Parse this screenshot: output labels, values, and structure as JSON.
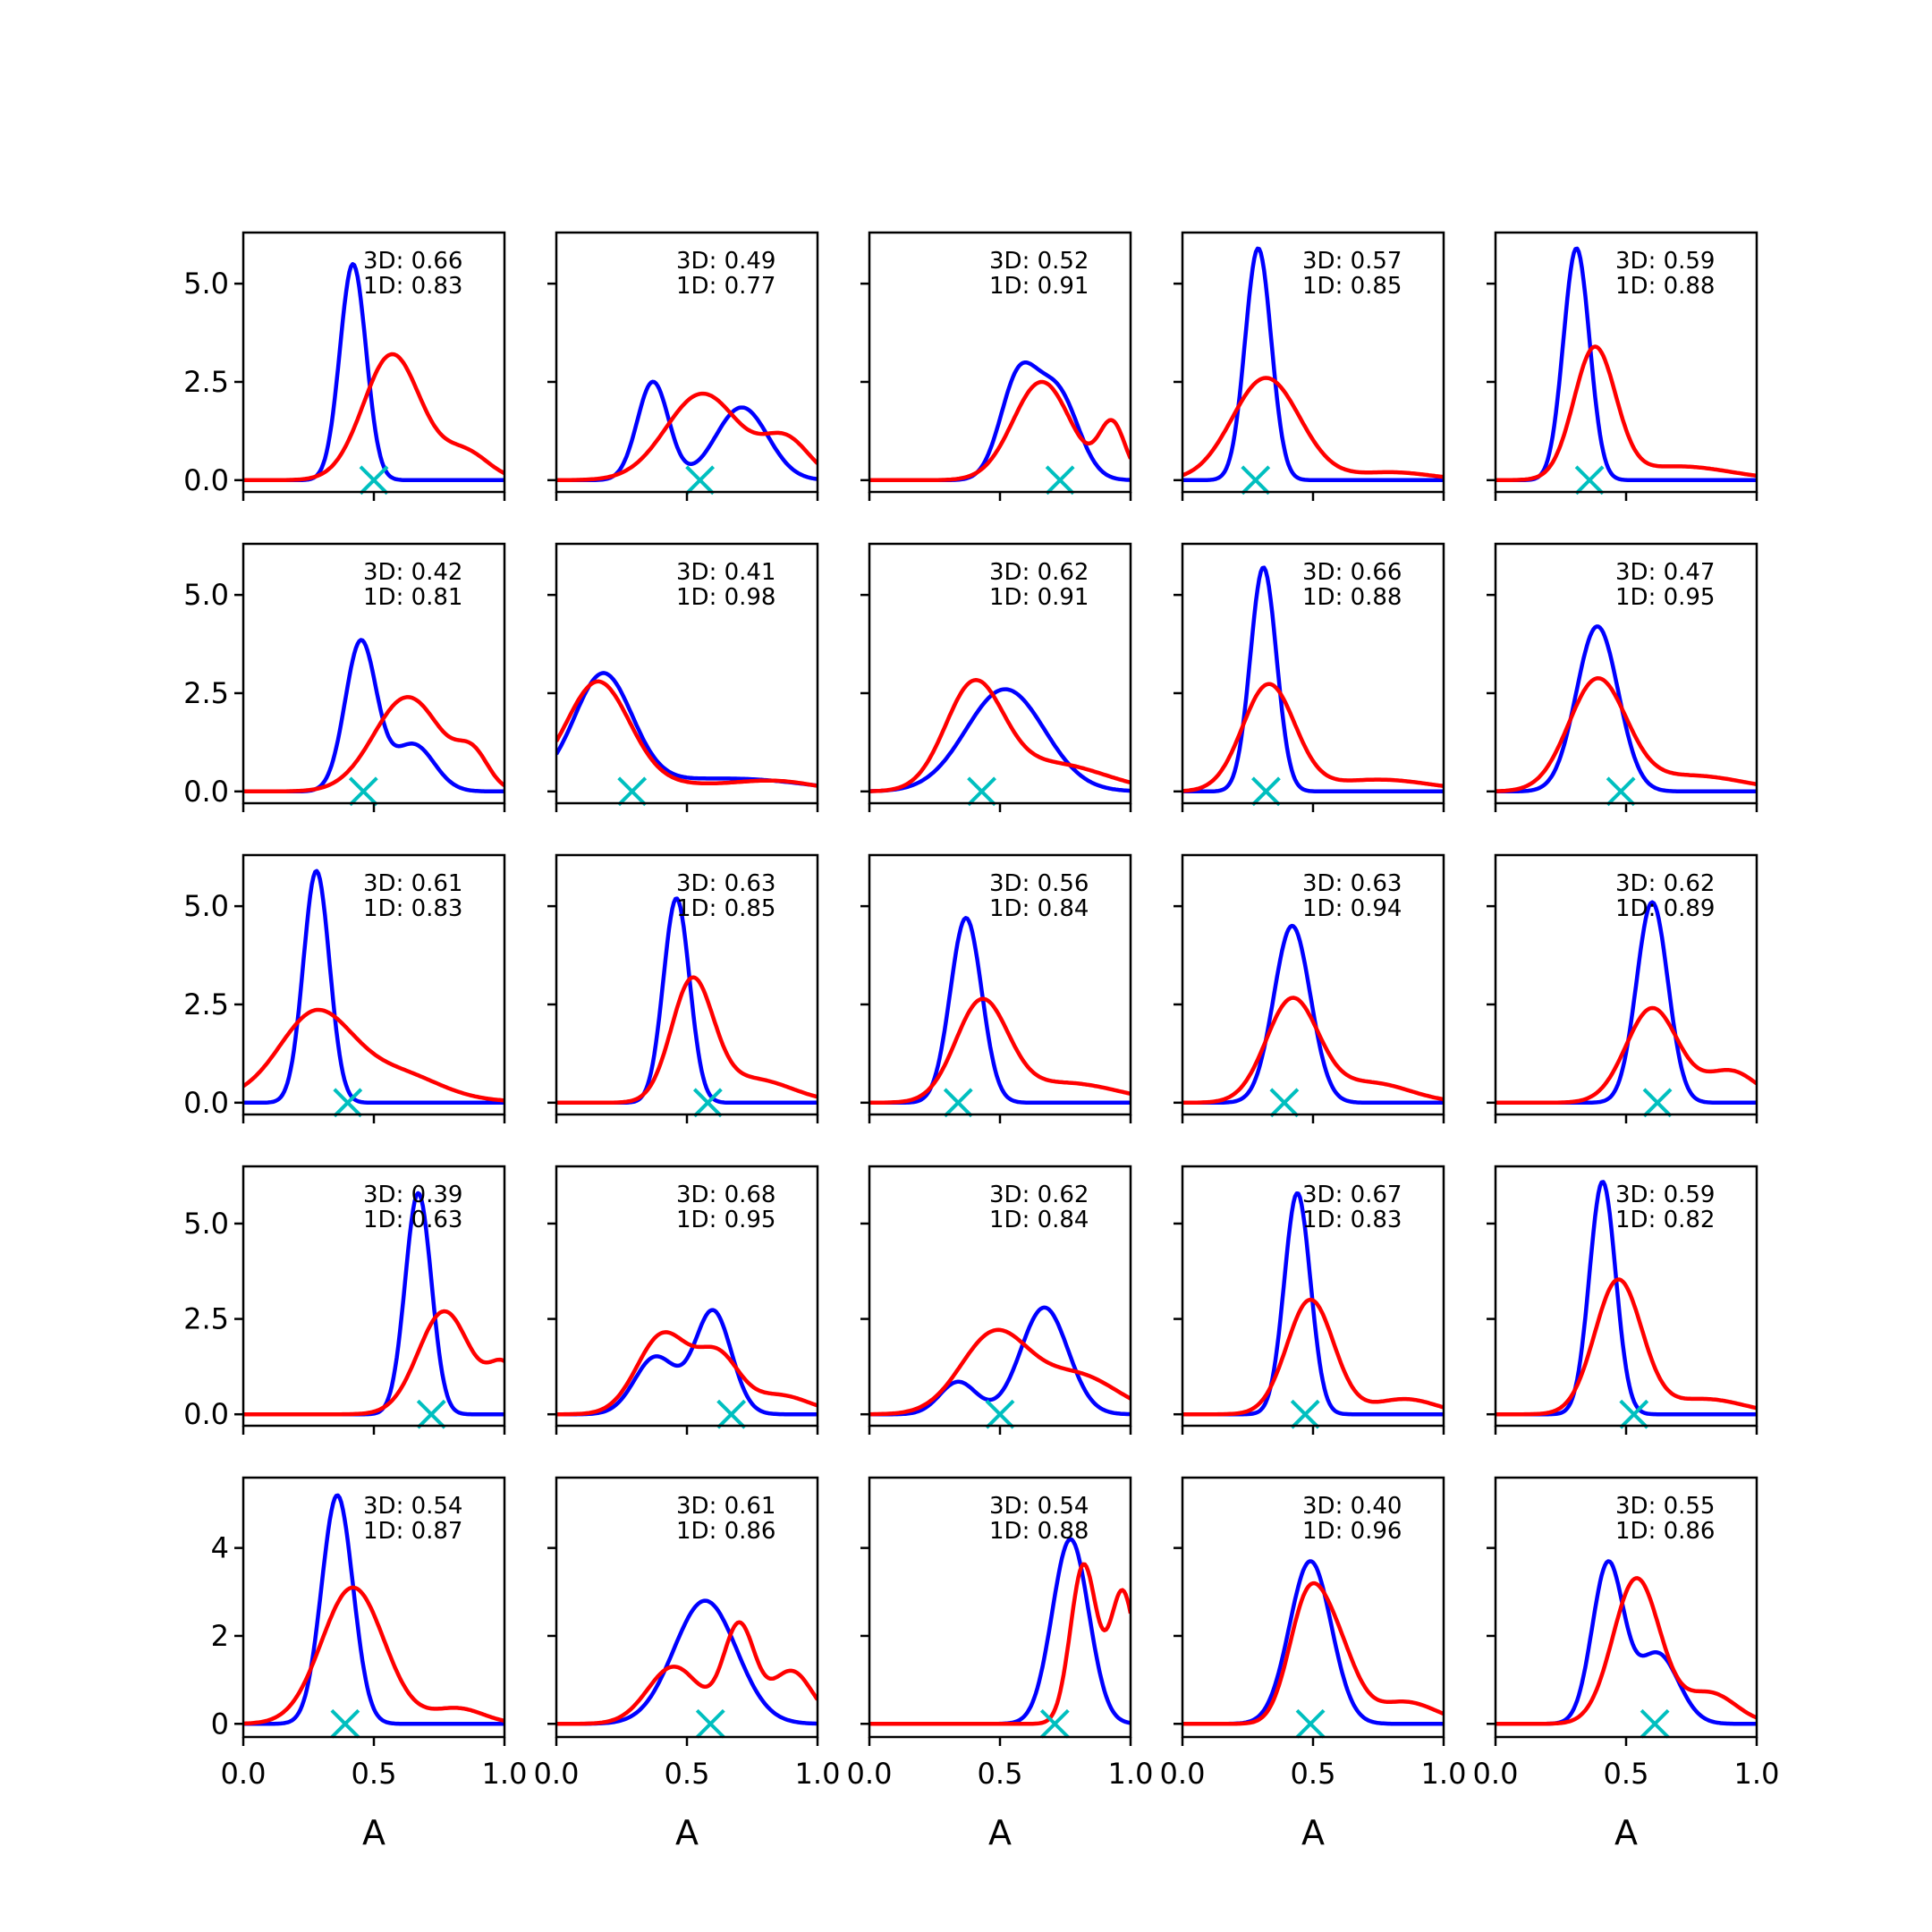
{
  "chart_data": {
    "type": "line",
    "layout": "grid",
    "rows": 5,
    "cols": 5,
    "xlabel": "A",
    "xlim": [
      0,
      1
    ],
    "x_ticks": [
      "0.0",
      "0.5",
      "1.0"
    ],
    "colors": {
      "series_3d": "#0000ff",
      "series_1d": "#ff0000",
      "marker": "#00bfbf"
    },
    "grid": false,
    "legend": "none",
    "row_ylims": [
      [
        -0.3,
        6.3
      ],
      [
        -0.3,
        6.3
      ],
      [
        -0.3,
        6.3
      ],
      [
        -0.3,
        6.5
      ],
      [
        -0.3,
        5.6
      ]
    ],
    "row_yticks": [
      [
        "0.0",
        "2.5",
        "5.0"
      ],
      [
        "0.0",
        "2.5",
        "5.0"
      ],
      [
        "0.0",
        "2.5",
        "5.0"
      ],
      [
        "0.0",
        "2.5",
        "5.0"
      ],
      [
        "0",
        "2",
        "4"
      ]
    ],
    "panels": [
      {
        "annotation": [
          "3D: 0.66",
          "1D: 0.83"
        ],
        "marker_x": 0.5,
        "blue": [
          [
            0.42,
            0.05,
            5.5,
            0
          ]
        ],
        "red": [
          [
            0.57,
            0.11,
            3.2,
            0
          ],
          [
            0.85,
            0.09,
            0.7,
            0
          ]
        ]
      },
      {
        "annotation": [
          "3D: 0.49",
          "1D: 0.77"
        ],
        "marker_x": 0.55,
        "blue": [
          [
            0.37,
            0.06,
            2.5,
            0
          ],
          [
            0.71,
            0.1,
            1.85,
            0
          ]
        ],
        "red": [
          [
            0.56,
            0.14,
            2.2,
            0
          ],
          [
            0.88,
            0.09,
            1.0,
            0
          ]
        ]
      },
      {
        "annotation": [
          "3D: 0.52",
          "1D: 0.91"
        ],
        "marker_x": 0.73,
        "blue": [
          [
            0.57,
            0.07,
            2.5,
            0
          ],
          [
            0.72,
            0.08,
            2.2,
            0
          ]
        ],
        "red": [
          [
            0.66,
            0.11,
            2.5,
            0
          ],
          [
            0.93,
            0.05,
            1.4,
            0
          ]
        ]
      },
      {
        "annotation": [
          "3D: 0.57",
          "1D: 0.85"
        ],
        "marker_x": 0.28,
        "blue": [
          [
            0.29,
            0.05,
            5.9,
            0
          ]
        ],
        "red": [
          [
            0.32,
            0.13,
            2.6,
            0
          ],
          [
            0.8,
            0.15,
            0.2,
            0
          ]
        ]
      },
      {
        "annotation": [
          "3D: 0.59",
          "1D: 0.88"
        ],
        "marker_x": 0.36,
        "blue": [
          [
            0.31,
            0.05,
            5.9,
            0
          ]
        ],
        "red": [
          [
            0.38,
            0.08,
            3.3,
            0
          ],
          [
            0.7,
            0.2,
            0.35,
            0
          ]
        ]
      },
      {
        "annotation": [
          "3D: 0.42",
          "1D: 0.81"
        ],
        "marker_x": 0.46,
        "blue": [
          [
            0.45,
            0.06,
            3.8,
            0
          ],
          [
            0.65,
            0.08,
            1.2,
            0
          ]
        ],
        "red": [
          [
            0.63,
            0.13,
            2.4,
            0
          ],
          [
            0.88,
            0.06,
            0.8,
            0
          ]
        ]
      },
      {
        "annotation": [
          "3D: 0.41",
          "1D: 0.98"
        ],
        "marker_x": 0.29,
        "blue": [
          [
            0.18,
            0.11,
            2.7,
            0.3
          ],
          [
            0.75,
            0.25,
            0.2,
            0
          ]
        ],
        "red": [
          [
            0.16,
            0.12,
            2.5,
            0.3
          ],
          [
            0.85,
            0.15,
            0.2,
            0
          ]
        ]
      },
      {
        "annotation": [
          "3D: 0.62",
          "1D: 0.91"
        ],
        "marker_x": 0.43,
        "blue": [
          [
            0.52,
            0.15,
            2.6,
            0
          ]
        ],
        "red": [
          [
            0.4,
            0.11,
            2.6,
            0
          ],
          [
            0.7,
            0.2,
            0.7,
            0
          ]
        ]
      },
      {
        "annotation": [
          "3D: 0.66",
          "1D: 0.88"
        ],
        "marker_x": 0.32,
        "blue": [
          [
            0.31,
            0.05,
            5.7,
            0
          ]
        ],
        "red": [
          [
            0.33,
            0.1,
            2.7,
            0
          ],
          [
            0.75,
            0.2,
            0.3,
            0
          ]
        ]
      },
      {
        "annotation": [
          "3D: 0.47",
          "1D: 0.95"
        ],
        "marker_x": 0.48,
        "blue": [
          [
            0.39,
            0.08,
            4.2,
            0
          ]
        ],
        "red": [
          [
            0.39,
            0.11,
            2.8,
            0
          ],
          [
            0.75,
            0.2,
            0.4,
            0
          ]
        ]
      },
      {
        "annotation": [
          "3D: 0.61",
          "1D: 0.83"
        ],
        "marker_x": 0.4,
        "blue": [
          [
            0.28,
            0.05,
            5.9,
            0
          ]
        ],
        "red": [
          [
            0.28,
            0.14,
            2.1,
            0.2
          ],
          [
            0.6,
            0.15,
            0.6,
            0
          ]
        ]
      },
      {
        "annotation": [
          "3D: 0.63",
          "1D: 0.85"
        ],
        "marker_x": 0.58,
        "blue": [
          [
            0.46,
            0.05,
            5.2,
            0
          ]
        ],
        "red": [
          [
            0.52,
            0.08,
            3.0,
            0
          ],
          [
            0.75,
            0.15,
            0.6,
            0
          ]
        ]
      },
      {
        "annotation": [
          "3D: 0.56",
          "1D: 0.84"
        ],
        "marker_x": 0.34,
        "blue": [
          [
            0.37,
            0.06,
            4.7,
            0
          ]
        ],
        "red": [
          [
            0.43,
            0.1,
            2.5,
            0
          ],
          [
            0.75,
            0.2,
            0.5,
            0
          ]
        ]
      },
      {
        "annotation": [
          "3D: 0.63",
          "1D: 0.94"
        ],
        "marker_x": 0.39,
        "blue": [
          [
            0.42,
            0.07,
            4.5,
            0
          ]
        ],
        "red": [
          [
            0.42,
            0.1,
            2.6,
            0
          ],
          [
            0.72,
            0.15,
            0.5,
            0
          ]
        ]
      },
      {
        "annotation": [
          "3D: 0.62",
          "1D: 0.89"
        ],
        "marker_x": 0.62,
        "blue": [
          [
            0.6,
            0.06,
            5.1,
            0
          ]
        ],
        "red": [
          [
            0.6,
            0.1,
            2.4,
            0
          ],
          [
            0.9,
            0.1,
            0.8,
            0
          ]
        ]
      },
      {
        "annotation": [
          "3D: 0.39",
          "1D: 0.63"
        ],
        "marker_x": 0.72,
        "blue": [
          [
            0.67,
            0.05,
            5.8,
            0
          ]
        ],
        "red": [
          [
            0.77,
            0.1,
            2.7,
            0
          ],
          [
            1.0,
            0.06,
            1.2,
            0
          ]
        ]
      },
      {
        "annotation": [
          "3D: 0.68",
          "1D: 0.95"
        ],
        "marker_x": 0.67,
        "blue": [
          [
            0.38,
            0.08,
            1.5,
            0
          ],
          [
            0.6,
            0.07,
            2.7,
            0
          ]
        ],
        "red": [
          [
            0.41,
            0.1,
            2.1,
            0
          ],
          [
            0.62,
            0.08,
            1.4,
            0
          ],
          [
            0.85,
            0.12,
            0.5,
            0
          ]
        ]
      },
      {
        "annotation": [
          "3D: 0.62",
          "1D: 0.84"
        ],
        "marker_x": 0.5,
        "blue": [
          [
            0.34,
            0.07,
            0.85,
            0
          ],
          [
            0.67,
            0.09,
            2.8,
            0
          ]
        ],
        "red": [
          [
            0.48,
            0.13,
            2.1,
            0
          ],
          [
            0.8,
            0.15,
            1.0,
            0
          ]
        ]
      },
      {
        "annotation": [
          "3D: 0.67",
          "1D: 0.83"
        ],
        "marker_x": 0.47,
        "blue": [
          [
            0.44,
            0.05,
            5.8,
            0
          ]
        ],
        "red": [
          [
            0.49,
            0.09,
            3.0,
            0
          ],
          [
            0.85,
            0.12,
            0.4,
            0
          ]
        ]
      },
      {
        "annotation": [
          "3D: 0.59",
          "1D: 0.82"
        ],
        "marker_x": 0.53,
        "blue": [
          [
            0.41,
            0.05,
            6.1,
            0
          ]
        ],
        "red": [
          [
            0.47,
            0.09,
            3.5,
            0
          ],
          [
            0.8,
            0.15,
            0.4,
            0
          ]
        ]
      },
      {
        "annotation": [
          "3D: 0.54",
          "1D: 0.87"
        ],
        "marker_x": 0.39,
        "blue": [
          [
            0.36,
            0.06,
            5.2,
            0
          ]
        ],
        "red": [
          [
            0.42,
            0.12,
            3.1,
            0
          ],
          [
            0.82,
            0.1,
            0.35,
            0
          ]
        ]
      },
      {
        "annotation": [
          "3D: 0.61",
          "1D: 0.86"
        ],
        "marker_x": 0.59,
        "blue": [
          [
            0.57,
            0.12,
            2.8,
            0
          ]
        ],
        "red": [
          [
            0.45,
            0.1,
            1.3,
            0
          ],
          [
            0.7,
            0.06,
            2.2,
            0
          ],
          [
            0.9,
            0.08,
            1.2,
            0
          ]
        ]
      },
      {
        "annotation": [
          "3D: 0.54",
          "1D: 0.88"
        ],
        "marker_x": 0.71,
        "blue": [
          [
            0.77,
            0.07,
            4.2,
            0
          ]
        ],
        "red": [
          [
            0.82,
            0.05,
            3.6,
            0
          ],
          [
            0.97,
            0.05,
            3.0,
            0
          ]
        ]
      },
      {
        "annotation": [
          "3D: 0.40",
          "1D: 0.96"
        ],
        "marker_x": 0.49,
        "blue": [
          [
            0.49,
            0.08,
            3.7,
            0
          ]
        ],
        "red": [
          [
            0.47,
            0.07,
            2.3,
            0
          ],
          [
            0.58,
            0.08,
            1.8,
            0
          ],
          [
            0.85,
            0.12,
            0.5,
            0
          ]
        ]
      },
      {
        "annotation": [
          "3D: 0.55",
          "1D: 0.86"
        ],
        "marker_x": 0.61,
        "blue": [
          [
            0.43,
            0.06,
            3.6,
            0
          ],
          [
            0.62,
            0.08,
            1.6,
            0
          ]
        ],
        "red": [
          [
            0.54,
            0.09,
            3.3,
            0
          ],
          [
            0.82,
            0.1,
            0.7,
            0
          ]
        ]
      }
    ]
  }
}
